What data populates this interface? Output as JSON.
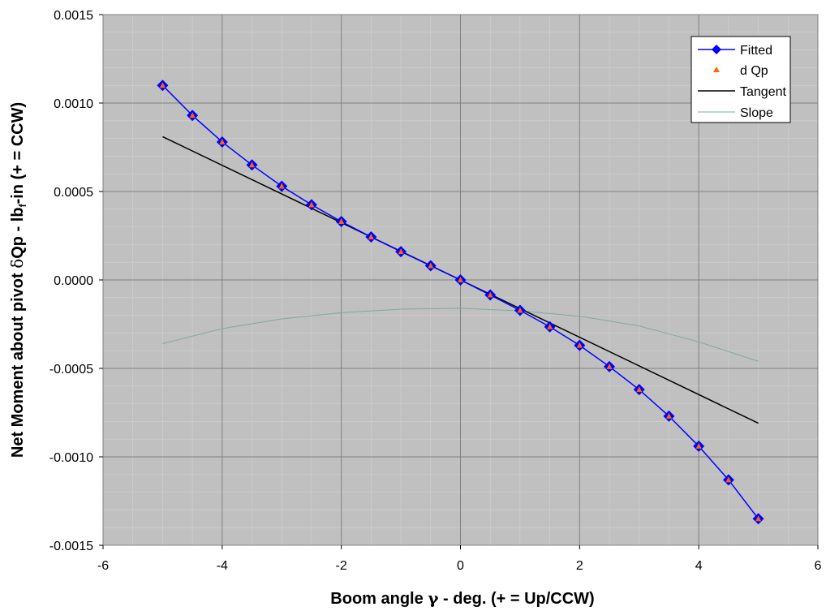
{
  "chart_data": {
    "type": "line",
    "xlabel": "Boom angle γ - deg.    (+ = Up/CCW)",
    "ylabel": "Net Moment about pivot δQp - lbf-in    (+ = CCW)",
    "ylabel_parts": {
      "pre": "Net Moment about pivot ",
      "delta": "δ",
      "mid": "Qp - lb",
      "sub": "f",
      "post": "-in    (+ = CCW)"
    },
    "xlabel_parts": {
      "pre": "Boom angle ",
      "gamma": "γ",
      "post": " - deg.    (+ = Up/CCW)"
    },
    "xlim": [
      -6,
      6
    ],
    "ylim": [
      -0.0015,
      0.0015
    ],
    "x_ticks": [
      -6,
      -4,
      -2,
      0,
      2,
      4,
      6
    ],
    "x_tick_labels": [
      "-6",
      "-4",
      "-2",
      "0",
      "2",
      "4",
      "6"
    ],
    "y_ticks": [
      0.0015,
      0.001,
      0.0005,
      0.0,
      -0.0005,
      -0.001,
      -0.0015
    ],
    "y_tick_labels": [
      "0.0015",
      "0.0010",
      "0.0005",
      "0.0000",
      "-0.0005",
      "-0.0010",
      "-0.0015"
    ],
    "grid": true,
    "legend_position": "top-right",
    "plot_background": "#c0c0c0",
    "series": [
      {
        "name": "Fitted",
        "kind": "line-diamond",
        "color": "#0000ff",
        "x": [
          -5,
          -4.5,
          -4,
          -3.5,
          -3,
          -2.5,
          -2,
          -1.5,
          -1,
          -0.5,
          0,
          0.5,
          1,
          1.5,
          2,
          2.5,
          3,
          3.5,
          4,
          4.5,
          5
        ],
        "y": [
          0.0011,
          0.00093,
          0.00078,
          0.00065,
          0.00053,
          0.000425,
          0.00033,
          0.000243,
          0.00016,
          8e-05,
          0.0,
          -8.5e-05,
          -0.000172,
          -0.000265,
          -0.00037,
          -0.00049,
          -0.00062,
          -0.00077,
          -0.00094,
          -0.00113,
          -0.00135
        ]
      },
      {
        "name": "d Qp",
        "kind": "triangle-marker",
        "color": "#ff6600",
        "x": [
          -5,
          -4.5,
          -4,
          -3.5,
          -3,
          -2.5,
          -2,
          -1.5,
          -1,
          -0.5,
          0,
          0.5,
          1,
          1.5,
          2,
          2.5,
          3,
          3.5,
          4,
          4.5,
          5
        ],
        "y": [
          0.0011,
          0.00093,
          0.00078,
          0.00065,
          0.00053,
          0.000425,
          0.00033,
          0.000243,
          0.00016,
          8e-05,
          0.0,
          -8.5e-05,
          -0.000172,
          -0.000265,
          -0.00037,
          -0.00049,
          -0.00062,
          -0.00077,
          -0.00094,
          -0.00113,
          -0.00135
        ]
      },
      {
        "name": "Tangent",
        "kind": "line",
        "color": "#000000",
        "x": [
          -5,
          5
        ],
        "y": [
          0.00081,
          -0.00081
        ]
      },
      {
        "name": "Slope",
        "kind": "line",
        "color": "#80a8a0",
        "x": [
          -5,
          -4,
          -3,
          -2,
          -1,
          0,
          1,
          2,
          3,
          4,
          5
        ],
        "y": [
          -0.00036,
          -0.000275,
          -0.00022,
          -0.000185,
          -0.000165,
          -0.00016,
          -0.000175,
          -0.000205,
          -0.00026,
          -0.00035,
          -0.00046
        ]
      }
    ]
  }
}
